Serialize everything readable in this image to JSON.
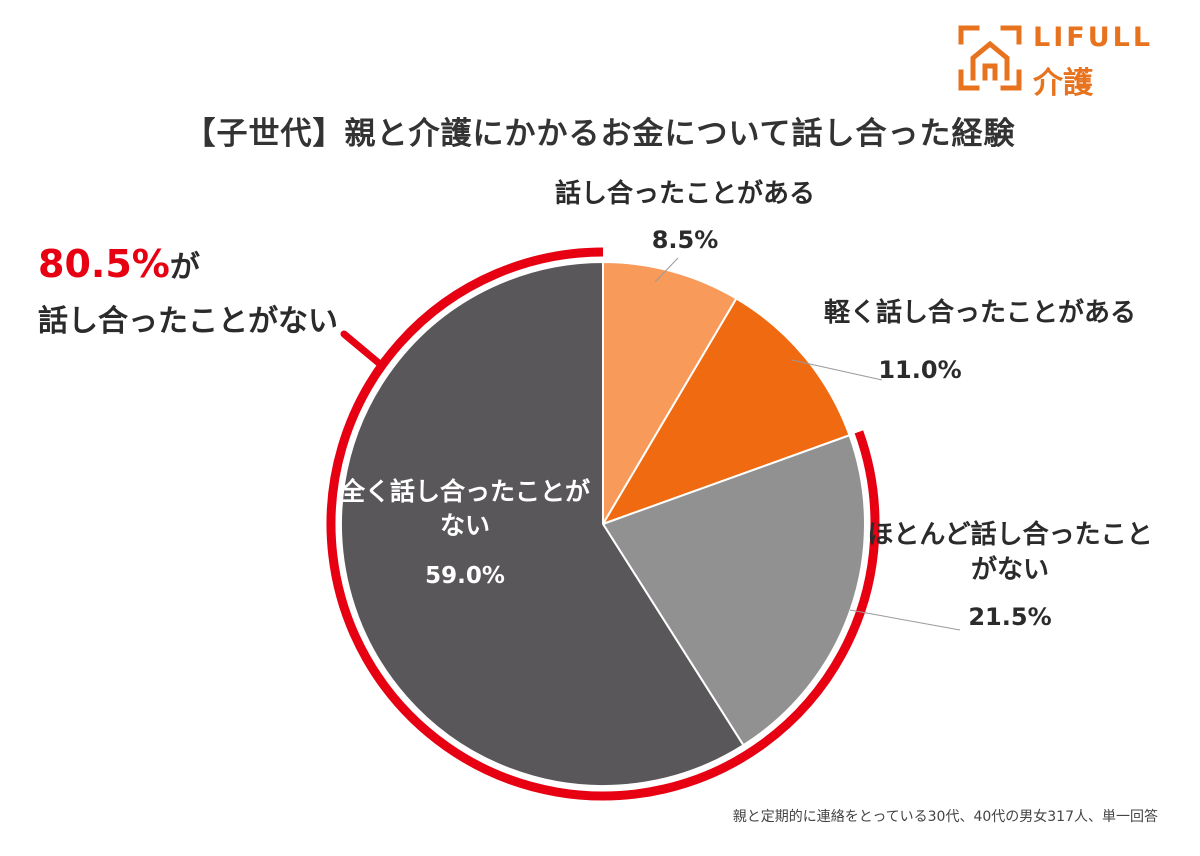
{
  "title": "【子世代】親と介護にかかるお金について話し合った経験",
  "logo": {
    "line1": "LIFULL",
    "line2": "介護",
    "color": "#e8731f"
  },
  "callout": {
    "percent": "80.5%",
    "suffix": "が",
    "text": "話し合ったことがない",
    "color": "#e60012"
  },
  "footnote": "親と定期的に連絡をとっている30代、40代の男女317人、単一回答",
  "chart_data": {
    "type": "pie",
    "title": "【子世代】親と介護にかかるお金について話し合った経験",
    "start_angle_deg": 0,
    "direction": "clockwise",
    "slices": [
      {
        "label": "話し合ったことがある",
        "value": 8.5,
        "value_label": "8.5%",
        "color": "#f79a5a"
      },
      {
        "label": "軽く話し合ったことがある",
        "value": 11.0,
        "value_label": "11.0%",
        "color": "#ef6a10"
      },
      {
        "label": "ほとんど話し合ったことがない",
        "value": 21.5,
        "value_label": "21.5%",
        "color": "#919191"
      },
      {
        "label": "全く話し合ったことがない",
        "value": 59.0,
        "value_label": "59.0%",
        "color": "#595759"
      }
    ],
    "highlight_arc": {
      "from_slice": 2,
      "to_slice": 3,
      "total": "80.5%",
      "color": "#e60012"
    }
  }
}
